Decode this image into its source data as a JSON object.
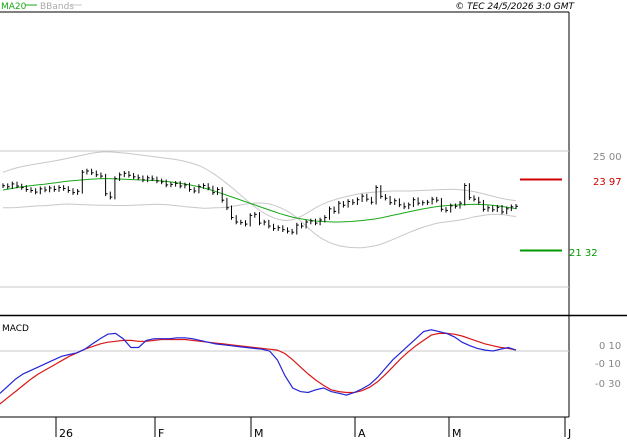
{
  "header": {
    "ma_label": "MA20",
    "bb_label": "BBands",
    "copyright": "© TEC 24/5/2026 3:0 GMT"
  },
  "colors": {
    "price": "#000000",
    "ma": "#19a819",
    "bands": "#c8c8c8",
    "macd": "#2424d8",
    "signal": "#d81818",
    "resistance": "#cc0000",
    "support": "#009900",
    "grid": "#c8c8c8",
    "frame": "#000000"
  },
  "chart_data": [
    {
      "type": "line",
      "panel": "price",
      "y_ticks": [
        {
          "value": 2500,
          "label": "25 00"
        }
      ],
      "levels": [
        {
          "value": 2397,
          "label": "23 97",
          "color": "#cc0000"
        },
        {
          "value": 2132,
          "label": "21 32",
          "color": "#009900"
        }
      ],
      "series": [
        {
          "name": "MA20",
          "values": [
            2370,
            2374,
            2378,
            2382,
            2385,
            2388,
            2391,
            2393,
            2396,
            2399,
            2402,
            2405,
            2407,
            2409,
            2411,
            2413,
            2414,
            2415,
            2415,
            2414,
            2413,
            2412,
            2411,
            2410,
            2409,
            2408,
            2407,
            2405,
            2403,
            2400,
            2397,
            2393,
            2389,
            2384,
            2378,
            2372,
            2365,
            2357,
            2349,
            2341,
            2333,
            2325,
            2317,
            2309,
            2301,
            2293,
            2285,
            2277,
            2270,
            2264,
            2259,
            2255,
            2251,
            2248,
            2246,
            2245,
            2244,
            2244,
            2245,
            2246,
            2248,
            2250,
            2253,
            2256,
            2260,
            2265,
            2270,
            2275,
            2280,
            2285,
            2290,
            2295,
            2299,
            2303,
            2306,
            2308,
            2310,
            2311,
            2312,
            2313,
            2314,
            2313,
            2312,
            2310,
            2307,
            2304,
            2300,
            2297
          ]
        },
        {
          "name": "BBands",
          "values": [
            2440,
            2448,
            2455,
            2461,
            2466,
            2470,
            2474,
            2478,
            2482,
            2486,
            2490,
            2495,
            2500,
            2505,
            2510,
            2515,
            2518,
            2520,
            2520,
            2519,
            2517,
            2515,
            2512,
            2509,
            2506,
            2503,
            2500,
            2497,
            2494,
            2491,
            2487,
            2482,
            2476,
            2468,
            2458,
            2445,
            2430,
            2413,
            2395,
            2376,
            2356,
            2336,
            2317,
            2299,
            2283,
            2270,
            2260,
            2253,
            2250,
            2252,
            2260,
            2272,
            2286,
            2300,
            2312,
            2322,
            2330,
            2337,
            2343,
            2348,
            2353,
            2357,
            2360,
            2362,
            2364,
            2365,
            2366,
            2366,
            2366,
            2366,
            2367,
            2368,
            2369,
            2370,
            2371,
            2372,
            2373,
            2372,
            2370,
            2367,
            2363,
            2358,
            2352,
            2346,
            2340,
            2335,
            2331,
            2328
          ]
        },
        {
          "name": "BBands",
          "values": [
            2300,
            2300,
            2301,
            2303,
            2304,
            2306,
            2308,
            2308,
            2310,
            2312,
            2314,
            2315,
            2314,
            2313,
            2312,
            2311,
            2310,
            2310,
            2310,
            2309,
            2309,
            2309,
            2310,
            2311,
            2312,
            2313,
            2314,
            2313,
            2312,
            2309,
            2307,
            2304,
            2302,
            2300,
            2298,
            2299,
            2300,
            2301,
            2303,
            2306,
            2310,
            2314,
            2317,
            2319,
            2319,
            2316,
            2310,
            2301,
            2290,
            2276,
            2258,
            2238,
            2216,
            2196,
            2180,
            2168,
            2158,
            2151,
            2147,
            2144,
            2143,
            2143,
            2146,
            2150,
            2156,
            2165,
            2174,
            2184,
            2194,
            2204,
            2213,
            2222,
            2229,
            2236,
            2241,
            2244,
            2247,
            2250,
            2254,
            2259,
            2265,
            2268,
            2272,
            2274,
            2274,
            2273,
            2269,
            2266
          ]
        },
        {
          "name": "",
          "values": [
            2387,
            2383,
            2394,
            2386,
            2380,
            2372,
            2368,
            2362,
            2375,
            2370,
            2378,
            2372,
            2380,
            2376,
            2368,
            2360,
            2365,
            2440,
            2445,
            2438,
            2430,
            2425,
            2355,
            2342,
            2415,
            2430,
            2436,
            2428,
            2422,
            2418,
            2410,
            2418,
            2414,
            2406,
            2402,
            2390,
            2392,
            2396,
            2386,
            2390,
            2372,
            2366,
            2384,
            2388,
            2378,
            2360,
            2372,
            2330,
            2300,
            2262,
            2244,
            2242,
            2236,
            2270,
            2274,
            2240,
            2244,
            2228,
            2218,
            2222,
            2214,
            2208,
            2204,
            2232,
            2228,
            2244,
            2248,
            2240,
            2252,
            2262,
            2296,
            2286,
            2318,
            2310,
            2325,
            2320,
            2332,
            2346,
            2334,
            2322,
            2380,
            2345,
            2338,
            2320,
            2328,
            2312,
            2304,
            2312,
            2332,
            2318,
            2320,
            2322,
            2334,
            2330,
            2294,
            2290,
            2308,
            2306,
            2318,
            2388,
            2340,
            2334,
            2322,
            2294,
            2300,
            2292,
            2302,
            2284,
            2296,
            2304,
            2306
          ]
        }
      ]
    },
    {
      "type": "line",
      "panel": "macd",
      "title": "MACD",
      "y_ticks": [
        {
          "value": 10,
          "label": "0 10"
        },
        {
          "value": -10,
          "label": "-0 10"
        },
        {
          "value": -30,
          "label": "-0 30"
        }
      ],
      "ylim": [
        -68,
        28
      ],
      "series": [
        {
          "name": "",
          "values": [
            -48,
            -40,
            -32,
            -26,
            -22,
            -18,
            -14,
            -10,
            -6,
            -4,
            -2,
            2,
            8,
            14,
            19,
            20,
            14,
            4,
            4,
            12,
            14,
            14,
            14,
            15,
            15,
            14,
            12,
            10,
            8,
            7,
            6,
            5,
            4,
            3,
            2,
            0,
            -10,
            -28,
            -42,
            -46,
            -47,
            -44,
            -42,
            -46,
            -48,
            -50,
            -47,
            -43,
            -38,
            -30,
            -20,
            -10,
            -2,
            6,
            14,
            22,
            24,
            22,
            20,
            16,
            10,
            6,
            3,
            1,
            0,
            2,
            4,
            1
          ]
        },
        {
          "name": "",
          "values": [
            -60,
            -53,
            -46,
            -39,
            -32,
            -26,
            -21,
            -16,
            -11,
            -6,
            -2,
            2,
            5,
            8,
            10,
            11,
            12,
            12,
            11,
            11,
            12,
            13,
            13,
            13,
            13,
            12,
            11,
            10,
            9,
            8,
            7,
            6,
            5,
            4,
            3,
            2,
            1,
            -3,
            -10,
            -18,
            -26,
            -33,
            -39,
            -44,
            -46,
            -47,
            -47,
            -45,
            -41,
            -35,
            -27,
            -18,
            -9,
            -1,
            6,
            12,
            18,
            20,
            20,
            19,
            17,
            14,
            11,
            8,
            6,
            4,
            3,
            1
          ]
        }
      ]
    }
  ],
  "x_axis": {
    "labels": [
      "26",
      "F",
      "M",
      "A",
      "M",
      "J"
    ]
  }
}
